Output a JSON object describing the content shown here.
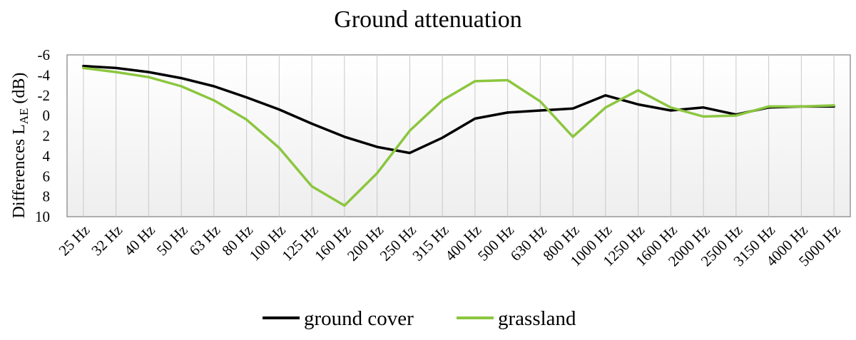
{
  "chart_data": {
    "type": "line",
    "title": "Ground attenuation",
    "ylabel_main": "Differences L",
    "ylabel_sub": "AE",
    "ylabel_unit": " (dB)",
    "y_reversed": true,
    "ylim": [
      -6,
      10
    ],
    "y_ticks": [
      -6,
      -4,
      -2,
      0,
      2,
      4,
      6,
      8,
      10
    ],
    "grid": "vertical",
    "legend_position": "bottom",
    "categories": [
      "25 Hz",
      "32 Hz",
      "40 Hz",
      "50 Hz",
      "63 Hz",
      "80 Hz",
      "100 Hz",
      "125 Hz",
      "160 Hz",
      "200 Hz",
      "250 Hz",
      "315 Hz",
      "400 Hz",
      "500 Hz",
      "630 Hz",
      "800 Hz",
      "1000 Hz",
      "1250 Hz",
      "1600 Hz",
      "2000 Hz",
      "2500 Hz",
      "3150 Hz",
      "4000 Hz",
      "5000 Hz"
    ],
    "series": [
      {
        "name": "ground cover",
        "color": "#000000",
        "values": [
          -4.9,
          -4.7,
          -4.3,
          -3.7,
          -2.9,
          -1.8,
          -0.6,
          0.8,
          2.1,
          3.1,
          3.7,
          2.2,
          0.3,
          -0.3,
          -0.5,
          -0.7,
          -2.0,
          -1.1,
          -0.5,
          -0.8,
          -0.1,
          -0.8,
          -0.9,
          -0.9
        ]
      },
      {
        "name": "grassland",
        "color": "#8cc63f",
        "values": [
          -4.7,
          -4.3,
          -3.8,
          -2.9,
          -1.5,
          0.4,
          3.2,
          7.0,
          8.9,
          5.7,
          1.5,
          -1.5,
          -3.4,
          -3.5,
          -1.4,
          2.1,
          -0.8,
          -2.5,
          -0.8,
          0.1,
          0.0,
          -0.9,
          -0.9,
          -1.0
        ]
      }
    ]
  }
}
